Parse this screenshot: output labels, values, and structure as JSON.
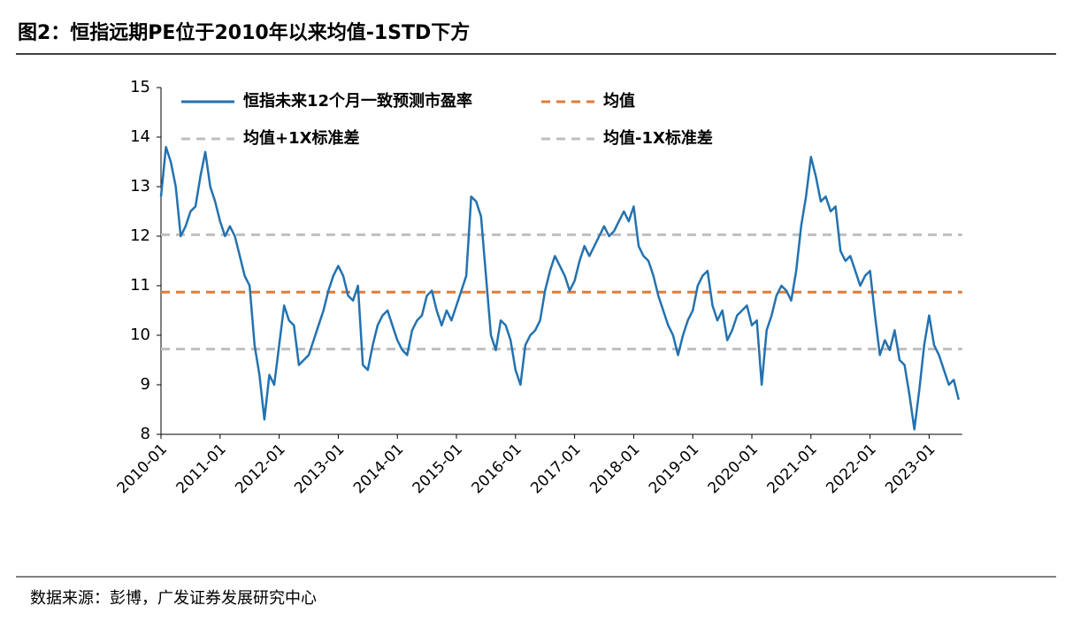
{
  "chart_data": {
    "type": "line",
    "title": "图2：恒指远期PE位于2010年以来均值-1STD下方",
    "source": "数据来源：彭博，广发证券发展研究中心",
    "x": [
      "2010-01",
      "2010-02",
      "2010-03",
      "2010-04",
      "2010-05",
      "2010-06",
      "2010-07",
      "2010-08",
      "2010-09",
      "2010-10",
      "2010-11",
      "2010-12",
      "2011-01",
      "2011-02",
      "2011-03",
      "2011-04",
      "2011-05",
      "2011-06",
      "2011-07",
      "2011-08",
      "2011-09",
      "2011-10",
      "2011-11",
      "2011-12",
      "2012-01",
      "2012-02",
      "2012-03",
      "2012-04",
      "2012-05",
      "2012-06",
      "2012-07",
      "2012-08",
      "2012-09",
      "2012-10",
      "2012-11",
      "2012-12",
      "2013-01",
      "2013-02",
      "2013-03",
      "2013-04",
      "2013-05",
      "2013-06",
      "2013-07",
      "2013-08",
      "2013-09",
      "2013-10",
      "2013-11",
      "2013-12",
      "2014-01",
      "2014-02",
      "2014-03",
      "2014-04",
      "2014-05",
      "2014-06",
      "2014-07",
      "2014-08",
      "2014-09",
      "2014-10",
      "2014-11",
      "2014-12",
      "2015-01",
      "2015-02",
      "2015-03",
      "2015-04",
      "2015-05",
      "2015-06",
      "2015-07",
      "2015-08",
      "2015-09",
      "2015-10",
      "2015-11",
      "2015-12",
      "2016-01",
      "2016-02",
      "2016-03",
      "2016-04",
      "2016-05",
      "2016-06",
      "2016-07",
      "2016-08",
      "2016-09",
      "2016-10",
      "2016-11",
      "2016-12",
      "2017-01",
      "2017-02",
      "2017-03",
      "2017-04",
      "2017-05",
      "2017-06",
      "2017-07",
      "2017-08",
      "2017-09",
      "2017-10",
      "2017-11",
      "2017-12",
      "2018-01",
      "2018-02",
      "2018-03",
      "2018-04",
      "2018-05",
      "2018-06",
      "2018-07",
      "2018-08",
      "2018-09",
      "2018-10",
      "2018-11",
      "2018-12",
      "2019-01",
      "2019-02",
      "2019-03",
      "2019-04",
      "2019-05",
      "2019-06",
      "2019-07",
      "2019-08",
      "2019-09",
      "2019-10",
      "2019-11",
      "2019-12",
      "2020-01",
      "2020-02",
      "2020-03",
      "2020-04",
      "2020-05",
      "2020-06",
      "2020-07",
      "2020-08",
      "2020-09",
      "2020-10",
      "2020-11",
      "2020-12",
      "2021-01",
      "2021-02",
      "2021-03",
      "2021-04",
      "2021-05",
      "2021-06",
      "2021-07",
      "2021-08",
      "2021-09",
      "2021-10",
      "2021-11",
      "2021-12",
      "2022-01",
      "2022-02",
      "2022-03",
      "2022-04",
      "2022-05",
      "2022-06",
      "2022-07",
      "2022-08",
      "2022-09",
      "2022-10",
      "2022-11",
      "2022-12",
      "2023-01",
      "2023-02",
      "2023-03",
      "2023-04",
      "2023-05",
      "2023-06",
      "2023-07"
    ],
    "series": [
      {
        "name": "恒指未来12个月一致预测市盈率",
        "color": "#2372b0",
        "values": [
          12.8,
          13.8,
          13.5,
          13.0,
          12.0,
          12.2,
          12.5,
          12.6,
          13.2,
          13.7,
          13.0,
          12.7,
          12.3,
          12.0,
          12.2,
          12.0,
          11.6,
          11.2,
          11.0,
          9.8,
          9.2,
          8.3,
          9.2,
          9.0,
          9.8,
          10.6,
          10.3,
          10.2,
          9.4,
          9.5,
          9.6,
          9.9,
          10.2,
          10.5,
          10.9,
          11.2,
          11.4,
          11.2,
          10.8,
          10.7,
          11.0,
          9.4,
          9.3,
          9.8,
          10.2,
          10.4,
          10.5,
          10.2,
          9.9,
          9.7,
          9.6,
          10.1,
          10.3,
          10.4,
          10.8,
          10.9,
          10.5,
          10.2,
          10.5,
          10.3,
          10.6,
          10.9,
          11.2,
          12.8,
          12.7,
          12.4,
          11.2,
          10.0,
          9.7,
          10.3,
          10.2,
          9.9,
          9.3,
          9.0,
          9.8,
          10.0,
          10.1,
          10.3,
          10.9,
          11.3,
          11.6,
          11.4,
          11.2,
          10.9,
          11.1,
          11.5,
          11.8,
          11.6,
          11.8,
          12.0,
          12.2,
          12.0,
          12.1,
          12.3,
          12.5,
          12.3,
          12.6,
          11.8,
          11.6,
          11.5,
          11.2,
          10.8,
          10.5,
          10.2,
          10.0,
          9.6,
          10.0,
          10.3,
          10.5,
          11.0,
          11.2,
          11.3,
          10.6,
          10.3,
          10.5,
          9.9,
          10.1,
          10.4,
          10.5,
          10.6,
          10.2,
          10.3,
          9.0,
          10.1,
          10.4,
          10.8,
          11.0,
          10.9,
          10.7,
          11.3,
          12.2,
          12.8,
          13.6,
          13.2,
          12.7,
          12.8,
          12.5,
          12.6,
          11.7,
          11.5,
          11.6,
          11.3,
          11.0,
          11.2,
          11.3,
          10.4,
          9.6,
          9.9,
          9.7,
          10.1,
          9.5,
          9.4,
          8.8,
          8.1,
          8.9,
          9.8,
          10.4,
          9.8,
          9.6,
          9.3,
          9.0,
          9.1,
          8.7
        ]
      }
    ],
    "reference_lines": [
      {
        "name": "均值",
        "color": "#e07b39",
        "value": 10.87
      },
      {
        "name": "均值+1X标准差",
        "color": "#bfbfbf",
        "value": 12.03
      },
      {
        "name": "均值-1X标准差",
        "color": "#bfbfbf",
        "value": 9.72
      }
    ],
    "xticks": [
      "2010-01",
      "2011-01",
      "2012-01",
      "2013-01",
      "2014-01",
      "2015-01",
      "2016-01",
      "2017-01",
      "2018-01",
      "2019-01",
      "2020-01",
      "2021-01",
      "2022-01",
      "2023-01"
    ],
    "ylim": [
      8,
      15
    ],
    "yticks": [
      8,
      9,
      10,
      11,
      12,
      13,
      14,
      15
    ]
  }
}
